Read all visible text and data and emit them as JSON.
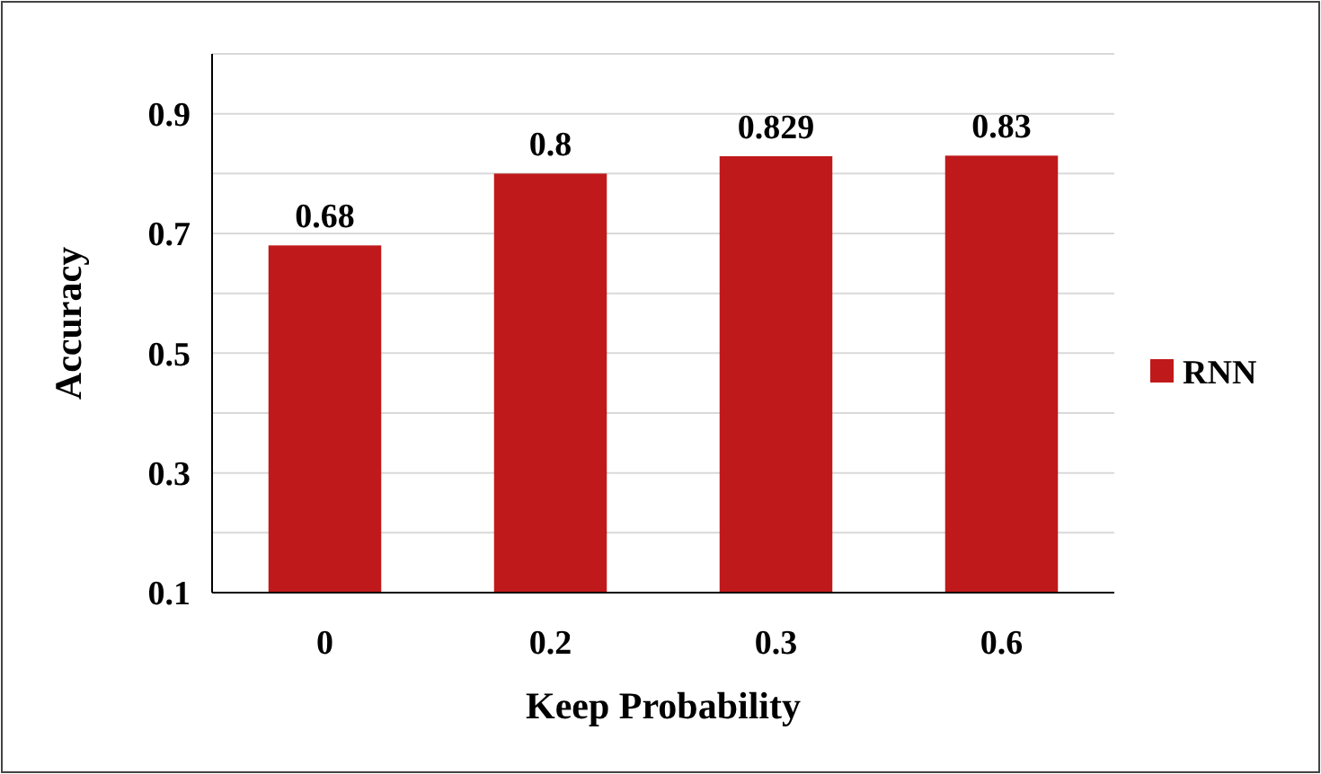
{
  "chart_data": {
    "type": "bar",
    "xlabel": "Keep Probability",
    "ylabel": "Accuracy",
    "categories": [
      "0",
      "0.2",
      "0.3",
      "0.6"
    ],
    "series": [
      {
        "name": "RNN",
        "color": "#c0191b",
        "values": [
          0.68,
          0.8,
          0.829,
          0.83
        ]
      }
    ],
    "data_labels": true,
    "ylim": [
      0.1,
      1.0
    ],
    "yticks": [
      0.1,
      {
        "value": 0.2,
        "label": null
      },
      0.3,
      {
        "value": 0.4,
        "label": null
      },
      0.5,
      {
        "value": 0.6,
        "label": null
      },
      0.7,
      {
        "value": 0.8,
        "label": null
      },
      0.9,
      {
        "value": 1.0,
        "label": null
      }
    ],
    "grid": "y",
    "legend": "right"
  }
}
